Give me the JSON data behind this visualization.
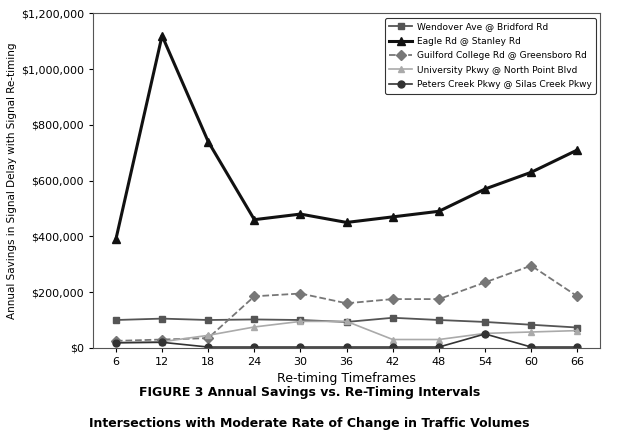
{
  "x": [
    6,
    12,
    18,
    24,
    30,
    36,
    42,
    48,
    54,
    60,
    66
  ],
  "series": [
    {
      "label": "Wendover Ave @ Bridford Rd",
      "values": [
        100000,
        105000,
        100000,
        102000,
        100000,
        93000,
        108000,
        100000,
        93000,
        83000,
        73000
      ],
      "marker": "s",
      "linestyle": "-",
      "color": "#555555",
      "linewidth": 1.3,
      "markersize": 5
    },
    {
      "label": "Eagle Rd @ Stanley Rd",
      "values": [
        390000,
        1120000,
        740000,
        460000,
        480000,
        450000,
        470000,
        490000,
        570000,
        630000,
        710000
      ],
      "marker": "^",
      "linestyle": "-",
      "color": "#111111",
      "linewidth": 2.2,
      "markersize": 6
    },
    {
      "label": "Guilford College Rd @ Greensboro Rd",
      "values": [
        25000,
        30000,
        35000,
        185000,
        195000,
        160000,
        175000,
        175000,
        235000,
        295000,
        185000
      ],
      "marker": "D",
      "linestyle": "--",
      "color": "#777777",
      "linewidth": 1.3,
      "markersize": 5
    },
    {
      "label": "University Pkwy @ North Point Blvd",
      "values": [
        20000,
        22000,
        45000,
        75000,
        95000,
        95000,
        30000,
        30000,
        52000,
        57000,
        62000
      ],
      "marker": "^",
      "linestyle": "-",
      "color": "#aaaaaa",
      "linewidth": 1.2,
      "markersize": 5
    },
    {
      "label": "Peters Creek Pkwy @ Silas Creek Pkwy",
      "values": [
        18000,
        20000,
        3000,
        3000,
        3000,
        3000,
        3000,
        3000,
        50000,
        3000,
        3000
      ],
      "marker": "o",
      "linestyle": "-",
      "color": "#333333",
      "linewidth": 1.2,
      "markersize": 5
    }
  ],
  "xlabel": "Re-timing Timeframes",
  "ylabel": "Annual Savings in Signal Delay with Signal Re-timing",
  "ylim": [
    0,
    1200000
  ],
  "yticks": [
    0,
    200000,
    400000,
    600000,
    800000,
    1000000,
    1200000
  ],
  "xticks": [
    6,
    12,
    18,
    24,
    30,
    36,
    42,
    48,
    54,
    60,
    66
  ],
  "title_line1": "FIGURE 3 Annual Savings vs. Re-Timing Intervals",
  "title_line2": "Intersections with Moderate Rate of Change in Traffic Volumes",
  "bg_color": "#ffffff"
}
